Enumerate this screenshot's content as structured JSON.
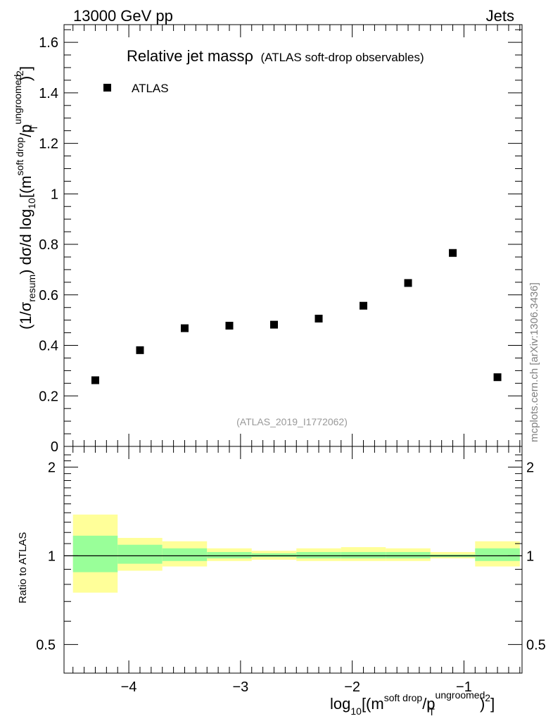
{
  "header": {
    "left": "13000 GeV pp",
    "right": "Jets"
  },
  "title": {
    "main": "Relative jet massρ",
    "sub": "(ATLAS soft-drop observables)"
  },
  "legend": {
    "label": "ATLAS"
  },
  "watermark": "(ATLAS_2019_I1772062)",
  "side_label": "mcplots.cern.ch [arXiv:1306.3436]",
  "axes": {
    "y_main_label": {
      "p1": "(1/σ",
      "sub1": "resum",
      "p2": ") dσ/d log",
      "sub2": "10",
      "p3": "[(m",
      "sup1": "soft drop",
      "p4": "/p",
      "sup2": "ungroomed",
      "sub3": "T",
      "p5": ")",
      "sup3": "2",
      "p6": "]"
    },
    "y_ratio_label": "Ratio to ATLAS",
    "x_label": {
      "p1": "log",
      "sub1": "10",
      "p2": "[(m",
      "sup1": "soft drop",
      "p3": "/p",
      "sup2": "ungroomed",
      "sub2": "T",
      "p4": ")",
      "sup3": "2",
      "p5": "]"
    }
  },
  "chart_data": {
    "type": "scatter",
    "xlim": [
      -4.58,
      -0.48
    ],
    "ylim": [
      0,
      1.67
    ],
    "x_ticks": [
      -4,
      -3,
      -2,
      -1
    ],
    "x_tick_labels": [
      "−4",
      "−3",
      "−2",
      "−1"
    ],
    "y_ticks": [
      0,
      0.2,
      0.4,
      0.6,
      0.8,
      1,
      1.2,
      1.4,
      1.6
    ],
    "y_tick_labels": [
      "0",
      "0.2",
      "0.4",
      "0.6",
      "0.8",
      "1",
      "1.2",
      "1.4",
      "1.6"
    ],
    "series": [
      {
        "name": "ATLAS",
        "x": [
          -4.3,
          -3.9,
          -3.5,
          -3.1,
          -2.7,
          -2.3,
          -1.9,
          -1.5,
          -1.1,
          -0.7
        ],
        "y": [
          0.262,
          0.381,
          0.468,
          0.478,
          0.482,
          0.506,
          0.557,
          0.647,
          0.766,
          0.274
        ]
      }
    ],
    "ratio": {
      "ylabel": "Ratio to ATLAS",
      "scale": "log",
      "ylim": [
        0.4,
        2.35
      ],
      "y_ticks": [
        0.5,
        1,
        2
      ],
      "y_tick_labels": [
        "0.5",
        "1",
        "2"
      ],
      "reference": 1,
      "bins": [
        {
          "x0": -4.5,
          "x1": -4.1,
          "yellow": [
            0.75,
            1.38
          ],
          "green": [
            0.88,
            1.17
          ]
        },
        {
          "x0": -4.1,
          "x1": -3.7,
          "yellow": [
            0.89,
            1.15
          ],
          "green": [
            0.94,
            1.09
          ]
        },
        {
          "x0": -3.7,
          "x1": -3.3,
          "yellow": [
            0.92,
            1.12
          ],
          "green": [
            0.96,
            1.06
          ]
        },
        {
          "x0": -3.3,
          "x1": -2.9,
          "yellow": [
            0.96,
            1.06
          ],
          "green": [
            0.98,
            1.03
          ]
        },
        {
          "x0": -2.9,
          "x1": -2.5,
          "yellow": [
            0.97,
            1.04
          ],
          "green": [
            0.99,
            1.02
          ]
        },
        {
          "x0": -2.5,
          "x1": -2.1,
          "yellow": [
            0.96,
            1.06
          ],
          "green": [
            0.98,
            1.03
          ]
        },
        {
          "x0": -2.1,
          "x1": -1.7,
          "yellow": [
            0.96,
            1.07
          ],
          "green": [
            0.98,
            1.03
          ]
        },
        {
          "x0": -1.7,
          "x1": -1.3,
          "yellow": [
            0.96,
            1.06
          ],
          "green": [
            0.98,
            1.03
          ]
        },
        {
          "x0": -1.3,
          "x1": -0.9,
          "yellow": [
            0.98,
            1.03
          ],
          "green": [
            0.99,
            1.01
          ]
        },
        {
          "x0": -0.9,
          "x1": -0.5,
          "yellow": [
            0.92,
            1.12
          ],
          "green": [
            0.96,
            1.06
          ]
        }
      ]
    },
    "colors": {
      "yellow_band": "#ffff99",
      "green_band": "#99ff99",
      "marker": "#000000",
      "watermark": "#999999",
      "side_label": "#808080"
    },
    "grid": false,
    "legend_position": "top-left"
  }
}
